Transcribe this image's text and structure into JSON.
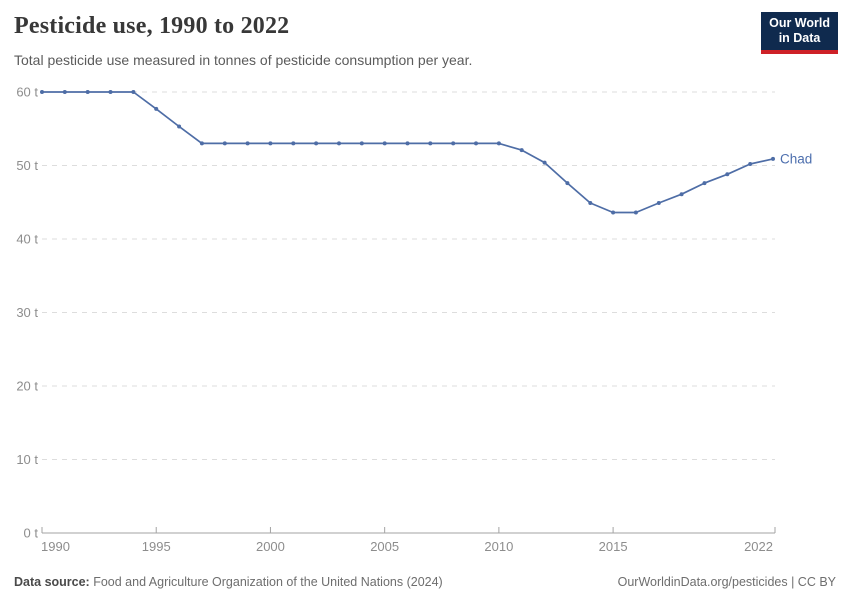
{
  "header": {
    "title": "Pesticide use, 1990 to 2022",
    "subtitle": "Total pesticide use measured in tonnes of pesticide consumption per year.",
    "logo": {
      "line1": "Our World",
      "line2": "in Data",
      "bg_color": "#0f2a4e",
      "accent_color": "#ce2127"
    }
  },
  "chart_data": {
    "type": "line",
    "title": "Pesticide use, 1990 to 2022",
    "subtitle": "Total pesticide use measured in tonnes of pesticide consumption per year.",
    "xlabel": "",
    "ylabel": "tonnes",
    "x": [
      1990,
      1991,
      1992,
      1993,
      1994,
      1995,
      1996,
      1997,
      1998,
      1999,
      2000,
      2001,
      2002,
      2003,
      2004,
      2005,
      2006,
      2007,
      2008,
      2009,
      2010,
      2011,
      2012,
      2013,
      2014,
      2015,
      2016,
      2017,
      2018,
      2019,
      2020,
      2021,
      2022
    ],
    "series": [
      {
        "name": "Chad",
        "color": "#4e6da6",
        "values": [
          60,
          60,
          60,
          60,
          60,
          57.7,
          55.3,
          53,
          53,
          53,
          53,
          53,
          53,
          53,
          53,
          53,
          53,
          53,
          53,
          53,
          53,
          52.1,
          50.4,
          47.6,
          44.9,
          43.6,
          43.6,
          44.9,
          46.1,
          47.6,
          48.8,
          50.2,
          50.9
        ]
      }
    ],
    "ylim": [
      0,
      60
    ],
    "yticks": [
      0,
      10,
      20,
      30,
      40,
      50,
      60
    ],
    "ytick_labels": [
      "0 t",
      "10 t",
      "20 t",
      "30 t",
      "40 t",
      "50 t",
      "60 t"
    ],
    "xticks": [
      1990,
      1995,
      2000,
      2005,
      2010,
      2015,
      2022
    ],
    "xtick_labels": [
      "1990",
      "1995",
      "2000",
      "2005",
      "2010",
      "2015",
      "2022"
    ],
    "grid": "horizontal-dashed",
    "legend": "line-end-entity-label",
    "colors": {
      "line": "#4e6da6",
      "marker": "#4e6da6",
      "entity_label": "#4d6fae",
      "grid": "#dddddd",
      "axis": "#a3a3a3",
      "tick_text": "#8d8d8d"
    }
  },
  "footer": {
    "source_label": "Data source:",
    "source_text": " Food and Agriculture Organization of the United Nations (2024)",
    "link_text": "OurWorldinData.org/pesticides",
    "separator": " | ",
    "license": "CC BY"
  }
}
